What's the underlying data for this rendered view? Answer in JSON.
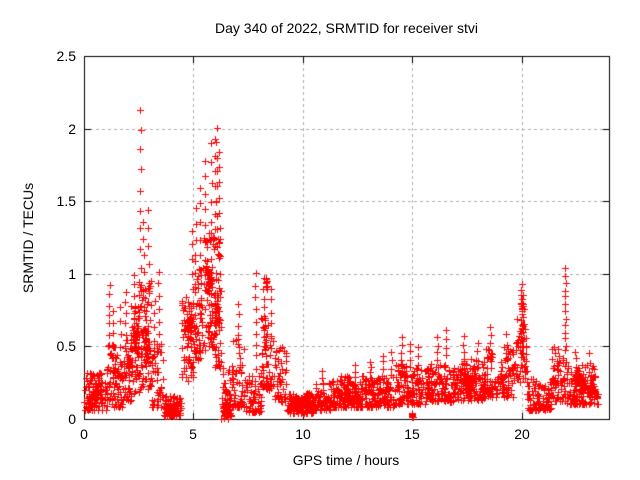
{
  "chart_data": {
    "type": "scatter",
    "title": "Day 340 of 2022, SRMTID for receiver stvi",
    "xlabel": "GPS time / hours",
    "ylabel": "SRMTID / TECUs",
    "xlim": [
      0,
      24
    ],
    "ylim": [
      0,
      2.5
    ],
    "xticks": [
      0,
      5,
      10,
      15,
      20
    ],
    "xtick_labels": [
      "0",
      "5",
      "10",
      "15",
      "20"
    ],
    "yticks": [
      0,
      0.5,
      1,
      1.5,
      2,
      2.5
    ],
    "ytick_labels": [
      "0",
      "0.5",
      "1",
      "1.5",
      "2",
      "2.5"
    ],
    "grid": true,
    "legend": "none",
    "marker": "plus",
    "marker_size_px": 7,
    "marker_color": "#ff0000",
    "grid_color": "#b0b0b0",
    "frame_color": "#000000",
    "text_color": "#000000",
    "background_color": "#ffffff",
    "seed": 7,
    "max_value": 2.12,
    "max_value_x": 2.6,
    "secondary_peak": 2.01,
    "secondary_peak_x": 6.1,
    "segments": [
      [
        0.02,
        1.0,
        90,
        0.06,
        0.32,
        1.8
      ],
      [
        1.0,
        1.45,
        45,
        0.08,
        0.52,
        1.6
      ],
      [
        1.45,
        1.8,
        38,
        0.08,
        0.45,
        1.5
      ],
      [
        1.8,
        2.15,
        42,
        0.12,
        0.58,
        1.4
      ],
      [
        2.15,
        2.55,
        55,
        0.18,
        0.8,
        1.3
      ],
      [
        2.55,
        3.1,
        70,
        0.2,
        0.95,
        1.3
      ],
      [
        3.1,
        3.6,
        45,
        0.08,
        0.55,
        1.6
      ],
      [
        3.6,
        4.45,
        95,
        0.02,
        0.16,
        1.6
      ],
      [
        4.45,
        5.0,
        60,
        0.25,
        0.85,
        1.1
      ],
      [
        5.0,
        5.5,
        55,
        0.4,
        1.1,
        1.2
      ],
      [
        5.5,
        5.95,
        60,
        0.45,
        1.3,
        1.2
      ],
      [
        5.95,
        6.3,
        55,
        0.35,
        1.25,
        1.2
      ],
      [
        6.3,
        6.75,
        60,
        0.02,
        0.35,
        2.2
      ],
      [
        6.75,
        7.4,
        60,
        0.08,
        0.55,
        1.7
      ],
      [
        7.4,
        8.1,
        60,
        0.05,
        0.3,
        1.7
      ],
      [
        8.1,
        8.65,
        55,
        0.2,
        0.7,
        1.3
      ],
      [
        8.65,
        9.3,
        50,
        0.12,
        0.5,
        1.6
      ],
      [
        9.3,
        10.6,
        110,
        0.04,
        0.18,
        1.5
      ],
      [
        10.6,
        11.3,
        60,
        0.06,
        0.26,
        1.5
      ],
      [
        11.3,
        14.2,
        260,
        0.08,
        0.3,
        1.5
      ],
      [
        14.2,
        15.7,
        135,
        0.1,
        0.38,
        1.5
      ],
      [
        15.7,
        16.9,
        110,
        0.12,
        0.38,
        1.5
      ],
      [
        16.9,
        18.3,
        130,
        0.13,
        0.42,
        1.5
      ],
      [
        18.3,
        19.65,
        120,
        0.15,
        0.5,
        1.5
      ],
      [
        19.65,
        20.25,
        55,
        0.25,
        0.7,
        1.2
      ],
      [
        20.25,
        21.4,
        95,
        0.06,
        0.28,
        1.6
      ],
      [
        21.4,
        22.05,
        60,
        0.12,
        0.5,
        1.4
      ],
      [
        22.05,
        23.5,
        130,
        0.1,
        0.38,
        1.6
      ]
    ],
    "spikes": [
      [
        1.15,
        0.45,
        0.92,
        8
      ],
      [
        1.32,
        0.35,
        0.75,
        6
      ],
      [
        1.65,
        0.4,
        0.78,
        5
      ],
      [
        1.9,
        0.5,
        0.88,
        6
      ],
      [
        2.3,
        0.7,
        1.0,
        5
      ],
      [
        2.5,
        0.6,
        0.95,
        5
      ],
      [
        2.58,
        0.9,
        2.12,
        10
      ],
      [
        2.72,
        0.9,
        1.35,
        5
      ],
      [
        2.95,
        0.8,
        1.45,
        6
      ],
      [
        3.2,
        0.45,
        0.82,
        5
      ],
      [
        3.42,
        0.5,
        1.02,
        7
      ],
      [
        4.95,
        0.8,
        1.3,
        6
      ],
      [
        5.1,
        0.9,
        1.45,
        6
      ],
      [
        5.3,
        1.0,
        1.6,
        6
      ],
      [
        5.55,
        1.1,
        1.78,
        7
      ],
      [
        5.8,
        1.1,
        1.9,
        7
      ],
      [
        6.0,
        1.2,
        1.92,
        8
      ],
      [
        6.08,
        1.3,
        2.01,
        8
      ],
      [
        6.18,
        1.2,
        1.85,
        7
      ],
      [
        7.05,
        0.5,
        0.8,
        5
      ],
      [
        7.85,
        0.35,
        1.0,
        9
      ],
      [
        8.22,
        0.5,
        0.97,
        8
      ],
      [
        8.55,
        0.5,
        0.9,
        6
      ],
      [
        10.9,
        0.2,
        0.33,
        4
      ],
      [
        12.4,
        0.25,
        0.36,
        4
      ],
      [
        13.1,
        0.28,
        0.4,
        4
      ],
      [
        13.65,
        0.3,
        0.44,
        4
      ],
      [
        14.05,
        0.3,
        0.46,
        4
      ],
      [
        14.5,
        0.35,
        0.56,
        5
      ],
      [
        14.9,
        0.35,
        0.52,
        4
      ],
      [
        15.25,
        0.32,
        0.5,
        4
      ],
      [
        16.15,
        0.35,
        0.56,
        5
      ],
      [
        16.55,
        0.38,
        0.62,
        5
      ],
      [
        17.35,
        0.35,
        0.57,
        5
      ],
      [
        18.0,
        0.35,
        0.52,
        4
      ],
      [
        18.6,
        0.4,
        0.64,
        5
      ],
      [
        19.3,
        0.4,
        0.58,
        4
      ],
      [
        20.0,
        0.55,
        0.93,
        12
      ],
      [
        20.08,
        0.5,
        0.85,
        8
      ],
      [
        22.0,
        0.5,
        1.04,
        12
      ],
      [
        22.45,
        0.3,
        0.47,
        4
      ],
      [
        23.1,
        0.25,
        0.46,
        4
      ]
    ],
    "blobs": [
      [
        0.5,
        0.16,
        40,
        0.28,
        0.055
      ],
      [
        2.35,
        0.55,
        25,
        0.09,
        0.09
      ],
      [
        2.85,
        0.5,
        25,
        0.1,
        0.12
      ],
      [
        4.8,
        0.65,
        30,
        0.1,
        0.07
      ],
      [
        5.7,
        0.95,
        25,
        0.12,
        0.1
      ],
      [
        6.05,
        0.75,
        25,
        0.08,
        0.1
      ],
      [
        6.5,
        0.07,
        35,
        0.1,
        0.035
      ],
      [
        8.35,
        0.93,
        10,
        0.04,
        0.045
      ],
      [
        9.9,
        0.09,
        60,
        0.3,
        0.04
      ],
      [
        12.0,
        0.15,
        40,
        0.5,
        0.05
      ],
      [
        15.0,
        0.03,
        8,
        0.02,
        0.018
      ],
      [
        17.6,
        0.25,
        35,
        0.3,
        0.06
      ],
      [
        20.02,
        0.78,
        10,
        0.025,
        0.03
      ],
      [
        22.6,
        0.25,
        25,
        0.2,
        0.06
      ],
      [
        23.2,
        0.24,
        20,
        0.1,
        0.06
      ]
    ],
    "points": [
      [
        6.28,
        0.0
      ],
      [
        6.42,
        0.005
      ],
      [
        6.6,
        0.0
      ],
      [
        0.02,
        0.12
      ],
      [
        0.03,
        0.2
      ]
    ]
  }
}
